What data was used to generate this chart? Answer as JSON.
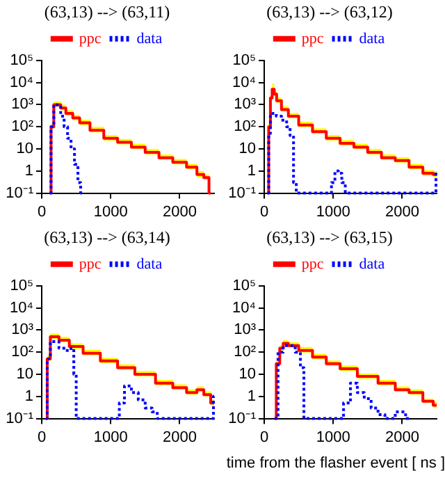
{
  "chart_data": [
    {
      "type": "step",
      "title": "(63,13) --> (63,11)",
      "log": "y",
      "grid": false,
      "legend": "top",
      "xlim": [
        0,
        2500
      ],
      "xticks": [
        0,
        1000,
        2000
      ],
      "ylim": [
        0.1,
        100000
      ],
      "yticks": [
        {
          "value": 0.1,
          "label": "10⁻¹"
        },
        {
          "value": 1,
          "label": "1"
        },
        {
          "value": 10,
          "label": "10"
        },
        {
          "value": 100,
          "label": "10²"
        },
        {
          "value": 1000,
          "label": "10³"
        },
        {
          "value": 10000,
          "label": "10⁴"
        },
        {
          "value": 100000,
          "label": "10⁵"
        }
      ],
      "series": [
        {
          "name": "ppc",
          "color": "#ff0000",
          "line_style": "solid",
          "x": [
            120,
            150,
            200,
            250,
            300,
            400,
            500,
            600,
            800,
            1000,
            1200,
            1400,
            1600,
            1800,
            2000,
            2200,
            2300,
            2400,
            2450
          ],
          "values": [
            0.1,
            100,
            1000,
            1000,
            700,
            400,
            250,
            150,
            70,
            30,
            20,
            12,
            7,
            4,
            2.5,
            1.5,
            0.7,
            0.5,
            0.1
          ],
          "lower": [
            0.1,
            80,
            800,
            800,
            560,
            320,
            200,
            120,
            56,
            24,
            16,
            10,
            5.6,
            3.2,
            2,
            1.2,
            0.5,
            0.4,
            0.1
          ],
          "upper": [
            0.1,
            140,
            1400,
            1400,
            1000,
            560,
            350,
            210,
            100,
            42,
            28,
            17,
            10,
            5.6,
            3.5,
            2.1,
            1,
            0.7,
            0.1
          ]
        },
        {
          "name": "data",
          "color": "#0000ff",
          "line_style": "dotted",
          "x": [
            120,
            150,
            200,
            250,
            300,
            350,
            400,
            450,
            500,
            550,
            580
          ],
          "values": [
            0.1,
            100,
            1000,
            800,
            300,
            100,
            30,
            10,
            2,
            0.3,
            0.1
          ]
        }
      ]
    },
    {
      "type": "step",
      "title": "(63,13) --> (63,12)",
      "log": "y",
      "grid": false,
      "legend": "top",
      "xlim": [
        0,
        2500
      ],
      "xticks": [
        0,
        1000,
        2000
      ],
      "ylim": [
        0.1,
        100000
      ],
      "yticks": [
        {
          "value": 0.1,
          "label": "10⁻¹"
        },
        {
          "value": 1,
          "label": "1"
        },
        {
          "value": 10,
          "label": "10"
        },
        {
          "value": 100,
          "label": "10²"
        },
        {
          "value": 1000,
          "label": "10³"
        },
        {
          "value": 10000,
          "label": "10⁴"
        },
        {
          "value": 100000,
          "label": "10⁵"
        }
      ],
      "series": [
        {
          "name": "ppc",
          "color": "#ff0000",
          "line_style": "solid",
          "x": [
            50,
            80,
            100,
            130,
            160,
            200,
            300,
            400,
            600,
            800,
            1000,
            1200,
            1400,
            1600,
            1800,
            2000,
            2200,
            2400,
            2500
          ],
          "values": [
            0.1,
            100,
            2000,
            5000,
            3000,
            1500,
            600,
            300,
            120,
            60,
            30,
            18,
            12,
            7,
            4,
            3,
            1.5,
            0.8,
            0.7
          ],
          "lower": [
            0.1,
            80,
            1600,
            4000,
            2400,
            1200,
            480,
            240,
            96,
            48,
            24,
            14,
            10,
            5.6,
            3.2,
            2.4,
            1.2,
            0.6,
            0.5
          ],
          "upper": [
            0.1,
            140,
            2800,
            9000,
            4200,
            2100,
            840,
            420,
            170,
            84,
            42,
            25,
            17,
            10,
            5.6,
            4.2,
            2.1,
            1.1,
            1
          ]
        },
        {
          "name": "data",
          "color": "#0000ff",
          "line_style": "dotted",
          "x": [
            50,
            80,
            100,
            150,
            200,
            300,
            350,
            400,
            450,
            480,
            950,
            1000,
            1050,
            1100,
            1150,
            1200,
            2480,
            2500
          ],
          "values": [
            0.1,
            50,
            300,
            400,
            300,
            200,
            100,
            40,
            0.3,
            0.1,
            0.1,
            0.3,
            1,
            0.8,
            0.3,
            0.1,
            0.1,
            1
          ]
        }
      ]
    },
    {
      "type": "step",
      "title": "(63,13) --> (63,14)",
      "log": "y",
      "grid": false,
      "legend": "top",
      "xlim": [
        0,
        2500
      ],
      "xticks": [
        0,
        1000,
        2000
      ],
      "ylim": [
        0.1,
        100000
      ],
      "yticks": [
        {
          "value": 0.1,
          "label": "10⁻¹"
        },
        {
          "value": 1,
          "label": "1"
        },
        {
          "value": 10,
          "label": "10"
        },
        {
          "value": 100,
          "label": "10²"
        },
        {
          "value": 1000,
          "label": "10³"
        },
        {
          "value": 10000,
          "label": "10⁴"
        },
        {
          "value": 100000,
          "label": "10⁵"
        }
      ],
      "series": [
        {
          "name": "ppc",
          "color": "#ff0000",
          "line_style": "solid",
          "x": [
            60,
            100,
            150,
            200,
            300,
            500,
            700,
            1000,
            1200,
            1500,
            1800,
            2000,
            2200,
            2300,
            2400,
            2500
          ],
          "values": [
            0.1,
            50,
            500,
            500,
            350,
            180,
            90,
            40,
            20,
            10,
            4,
            2.5,
            1.5,
            2,
            1.2,
            0.5
          ],
          "lower": [
            0.1,
            40,
            400,
            400,
            280,
            140,
            72,
            32,
            16,
            8,
            3.2,
            2,
            1.2,
            1.6,
            1,
            0.4
          ],
          "upper": [
            0.1,
            70,
            700,
            700,
            490,
            250,
            130,
            56,
            28,
            14,
            5.6,
            3.5,
            2.1,
            2.8,
            1.7,
            0.7
          ]
        },
        {
          "name": "data",
          "color": "#0000ff",
          "line_style": "dotted",
          "x": [
            60,
            100,
            150,
            200,
            300,
            400,
            450,
            480,
            520,
            1100,
            1150,
            1250,
            1350,
            1450,
            1550,
            1650,
            1700,
            2480,
            2500
          ],
          "values": [
            0.1,
            50,
            300,
            300,
            150,
            120,
            150,
            10,
            0.1,
            0.1,
            0.5,
            3,
            1.5,
            0.7,
            0.3,
            0.2,
            0.1,
            0.1,
            1
          ]
        }
      ]
    },
    {
      "type": "step",
      "title": "(63,13) --> (63,15)",
      "xlabel": "time from the flasher event [ ns ]",
      "log": "y",
      "grid": false,
      "legend": "top",
      "xlim": [
        0,
        2500
      ],
      "xticks": [
        0,
        1000,
        2000
      ],
      "ylim": [
        0.1,
        100000
      ],
      "yticks": [
        {
          "value": 0.1,
          "label": "10⁻¹"
        },
        {
          "value": 1,
          "label": "1"
        },
        {
          "value": 10,
          "label": "10"
        },
        {
          "value": 100,
          "label": "10²"
        },
        {
          "value": 1000,
          "label": "10³"
        },
        {
          "value": 10000,
          "label": "10⁴"
        },
        {
          "value": 100000,
          "label": "10⁵"
        }
      ],
      "series": [
        {
          "name": "ppc",
          "color": "#ff0000",
          "line_style": "solid",
          "x": [
            150,
            200,
            250,
            300,
            400,
            600,
            800,
            1000,
            1200,
            1500,
            1800,
            2000,
            2200,
            2400,
            2500
          ],
          "values": [
            0.1,
            30,
            150,
            250,
            200,
            120,
            60,
            30,
            18,
            8,
            4,
            2,
            1.5,
            0.6,
            0.4
          ],
          "lower": [
            0.1,
            24,
            120,
            200,
            160,
            96,
            48,
            24,
            14,
            6.4,
            3.2,
            1.6,
            1.2,
            0.5,
            0.3
          ],
          "upper": [
            0.1,
            42,
            210,
            350,
            280,
            170,
            84,
            42,
            25,
            11,
            5.6,
            2.8,
            2.1,
            0.8,
            0.6
          ]
        },
        {
          "name": "data",
          "color": "#0000ff",
          "line_style": "dotted",
          "x": [
            150,
            250,
            300,
            400,
            500,
            550,
            600,
            1100,
            1200,
            1300,
            1400,
            1500,
            1600,
            1700,
            1800,
            2000,
            2100
          ],
          "values": [
            0.1,
            100,
            200,
            200,
            100,
            20,
            0.1,
            0.1,
            0.5,
            4,
            1.5,
            0.8,
            0.3,
            0.15,
            0.1,
            0.2,
            0.1
          ]
        }
      ]
    }
  ]
}
